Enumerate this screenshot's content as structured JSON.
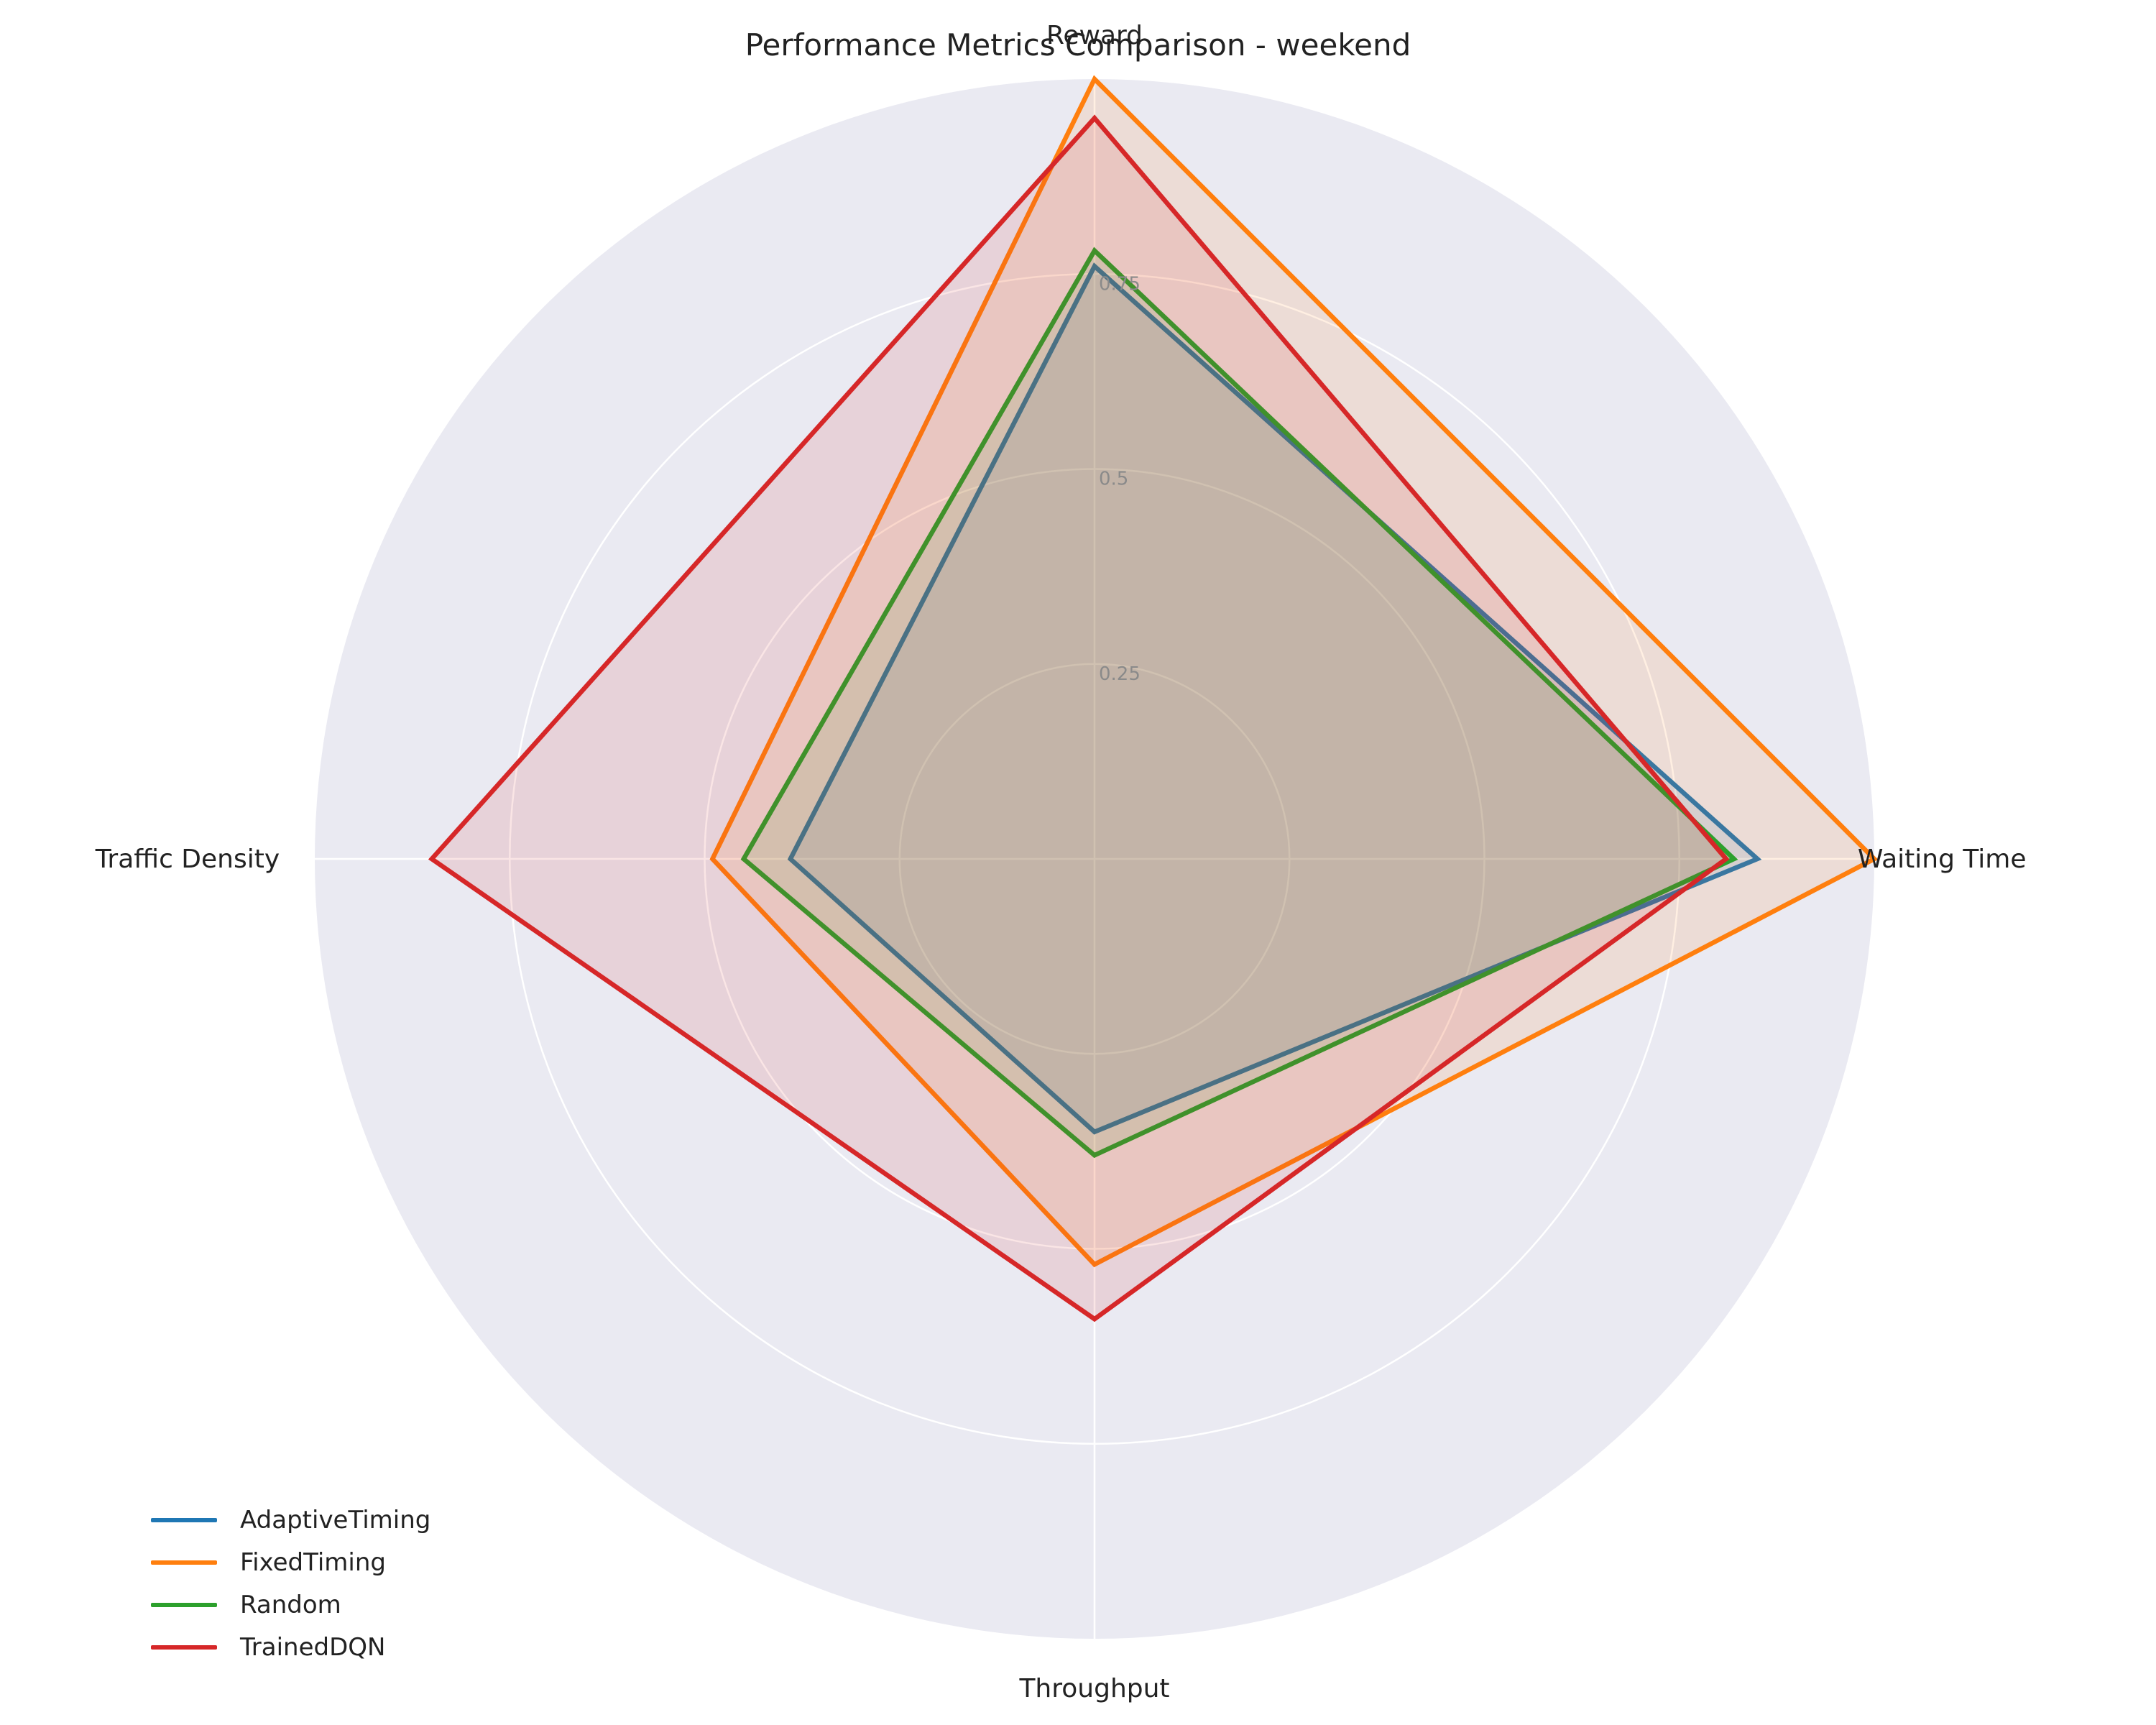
{
  "chart_data": {
    "type": "radar",
    "title": "Performance Metrics Comparison - weekend",
    "axes": [
      "Reward",
      "Waiting Time",
      "Throughput",
      "Traffic Density"
    ],
    "radial_ticks": [
      "0.25",
      "0.5",
      "0.75"
    ],
    "rlim": [
      0,
      1
    ],
    "grid": true,
    "legend_position": "bottom-left",
    "series": [
      {
        "name": "AdaptiveTiming",
        "color": "#1f77b4",
        "values": [
          0.76,
          0.85,
          0.35,
          0.39
        ]
      },
      {
        "name": "FixedTiming",
        "color": "#ff7f0e",
        "values": [
          1.0,
          1.0,
          0.52,
          0.49
        ]
      },
      {
        "name": "Random",
        "color": "#2ca02c",
        "values": [
          0.78,
          0.82,
          0.38,
          0.45
        ]
      },
      {
        "name": "TrainedDQN",
        "color": "#d62728",
        "values": [
          0.95,
          0.81,
          0.59,
          0.85
        ]
      }
    ]
  }
}
